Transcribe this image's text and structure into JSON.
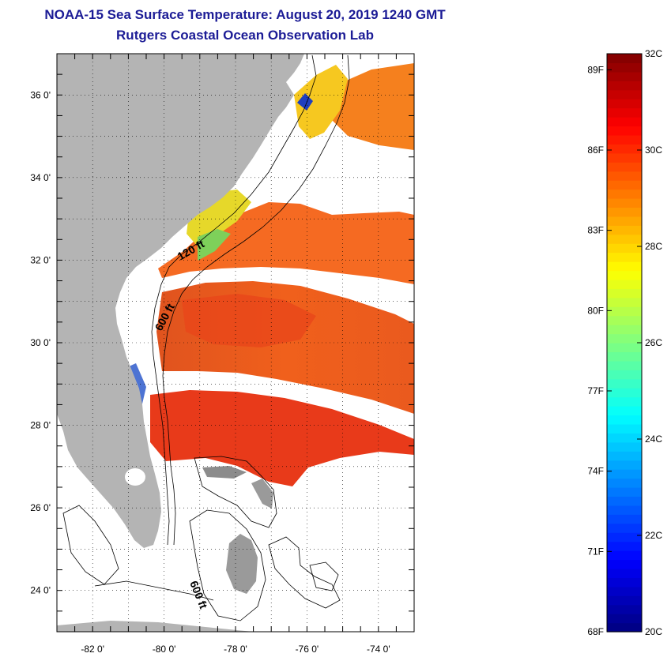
{
  "header": {
    "title": "NOAA-15 Sea Surface Temperature:  August 20, 2019 1240 GMT",
    "subtitle": "Rutgers Coastal Ocean Observation Lab"
  },
  "map": {
    "lon_range": [
      -83,
      -73
    ],
    "lat_range": [
      23,
      37
    ],
    "lon_ticks": [
      {
        "value": -82,
        "label": "-82 0'"
      },
      {
        "value": -80,
        "label": "-80 0'"
      },
      {
        "value": -78,
        "label": "-78 0'"
      },
      {
        "value": -76,
        "label": "-76 0'"
      },
      {
        "value": -74,
        "label": "-74 0'"
      }
    ],
    "lat_ticks": [
      {
        "value": 36,
        "label": "36 0'"
      },
      {
        "value": 34,
        "label": "34 0'"
      },
      {
        "value": 32,
        "label": "32 0'"
      },
      {
        "value": 30,
        "label": "30 0'"
      },
      {
        "value": 28,
        "label": "28 0'"
      },
      {
        "value": 26,
        "label": "26 0'"
      },
      {
        "value": 24,
        "label": "24 0'"
      }
    ],
    "contour_labels": [
      "120 ft",
      "600 ft",
      "600 ft"
    ],
    "colors": {
      "land": "#b4b4b4",
      "ocean_nodata": "#ffffff",
      "sst_warm": "#f04a1c"
    }
  },
  "colorbar": {
    "min_c": 20,
    "max_c": 32,
    "celsius_labels": [
      {
        "value": 32,
        "label": "32C"
      },
      {
        "value": 30,
        "label": "30C"
      },
      {
        "value": 28,
        "label": "28C"
      },
      {
        "value": 26,
        "label": "26C"
      },
      {
        "value": 24,
        "label": "24C"
      },
      {
        "value": 22,
        "label": "22C"
      },
      {
        "value": 20,
        "label": "20C"
      }
    ],
    "fahrenheit_labels": [
      {
        "value": 89,
        "label": "89F"
      },
      {
        "value": 86,
        "label": "86F"
      },
      {
        "value": 83,
        "label": "83F"
      },
      {
        "value": 80,
        "label": "80F"
      },
      {
        "value": 77,
        "label": "77F"
      },
      {
        "value": 74,
        "label": "74F"
      },
      {
        "value": 71,
        "label": "71F"
      },
      {
        "value": 68,
        "label": "68F"
      }
    ]
  }
}
